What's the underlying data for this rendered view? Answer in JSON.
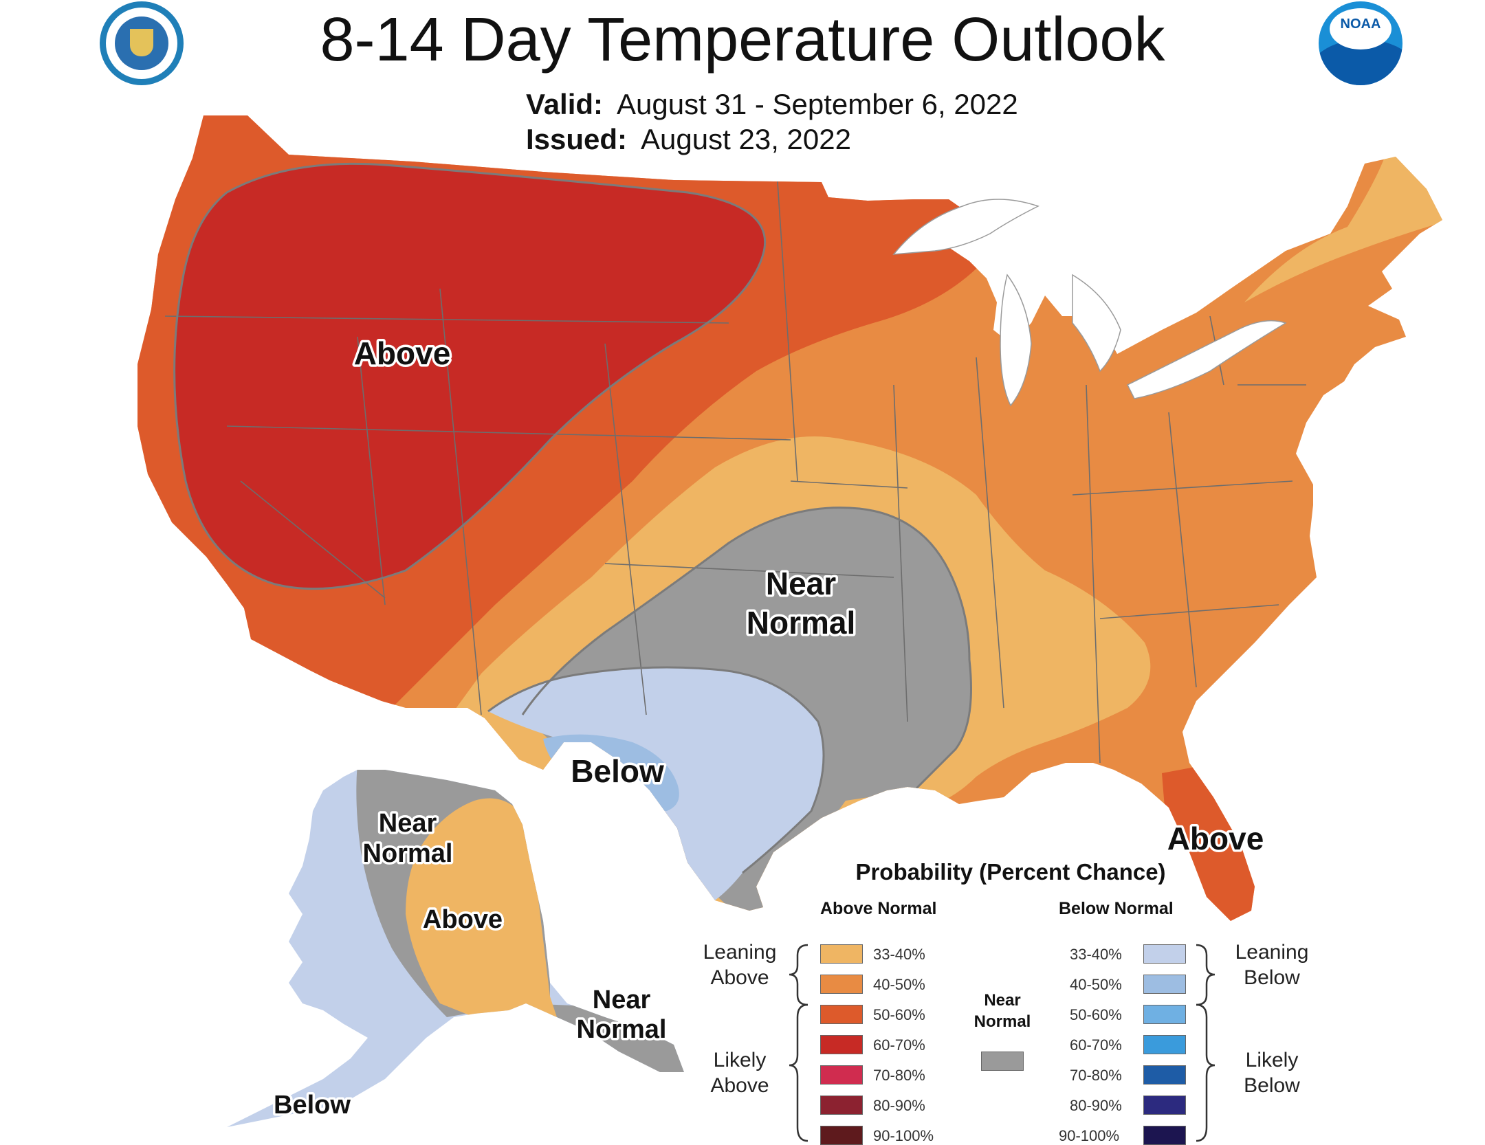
{
  "header": {
    "title": "8-14 Day Temperature Outlook",
    "valid_label": "Valid:",
    "valid_value": "August 31 - September 6, 2022",
    "issued_label": "Issued:",
    "issued_value": "August 23, 2022"
  },
  "logos": {
    "left": "doc-seal",
    "right_text": "NOAA"
  },
  "map_labels": {
    "west_above": "Above",
    "south_near1": "Near",
    "south_near2": "Normal",
    "south_below": "Below",
    "florida_above": "Above",
    "ak_near1": "Near",
    "ak_near2": "Normal",
    "ak_above": "Above",
    "ak_se_near1": "Near",
    "ak_se_near2": "Normal",
    "ak_below": "Below"
  },
  "legend": {
    "title": "Probability (Percent Chance)",
    "above_heading": "Above Normal",
    "below_heading": "Below Normal",
    "leaning_above": [
      "Leaning",
      "Above"
    ],
    "likely_above": [
      "Likely",
      "Above"
    ],
    "leaning_below": [
      "Leaning",
      "Below"
    ],
    "likely_below": [
      "Likely",
      "Below"
    ],
    "near_normal": [
      "Near",
      "Normal"
    ],
    "near_normal_color": "#9a9a9a",
    "above": [
      {
        "range": "33-40%",
        "color": "#efb563"
      },
      {
        "range": "40-50%",
        "color": "#e88b43"
      },
      {
        "range": "50-60%",
        "color": "#dd5a2b"
      },
      {
        "range": "60-70%",
        "color": "#c72a25"
      },
      {
        "range": "70-80%",
        "color": "#d02c4f"
      },
      {
        "range": "80-90%",
        "color": "#8c2230"
      },
      {
        "range": "90-100%",
        "color": "#5e1a1d"
      }
    ],
    "below": [
      {
        "range": "33-40%",
        "color": "#c2d0ea"
      },
      {
        "range": "40-50%",
        "color": "#9dbde2"
      },
      {
        "range": "50-60%",
        "color": "#6fb0e3"
      },
      {
        "range": "60-70%",
        "color": "#3a9bdc"
      },
      {
        "range": "70-80%",
        "color": "#1e5ca6"
      },
      {
        "range": "80-90%",
        "color": "#2c2a7f"
      },
      {
        "range": "90-100%",
        "color": "#1c1550"
      }
    ]
  }
}
